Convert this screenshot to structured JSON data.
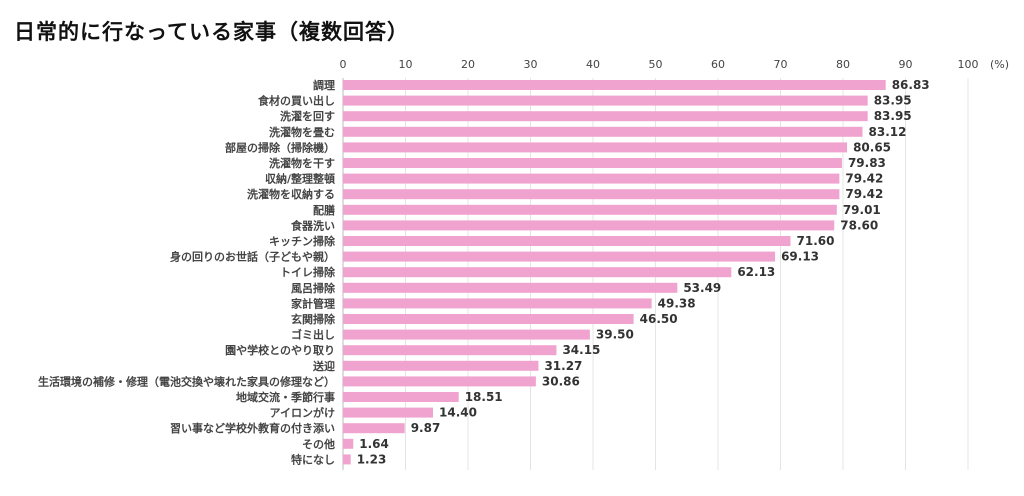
{
  "chart_data": {
    "type": "bar",
    "orientation": "horizontal",
    "title": "日常的に行なっている家事（複数回答）",
    "unit_label": "(%)",
    "xlim": [
      0,
      100
    ],
    "xticks": [
      0,
      10,
      20,
      30,
      40,
      50,
      60,
      70,
      80,
      90,
      100
    ],
    "grid": true,
    "bar_color": "#f0a3cf",
    "categories": [
      "調理",
      "食材の買い出し",
      "洗濯を回す",
      "洗濯物を畳む",
      "部屋の掃除（掃除機）",
      "洗濯物を干す",
      "収納/整理整頓",
      "洗濯物を収納する",
      "配膳",
      "食器洗い",
      "キッチン掃除",
      "身の回りのお世話（子どもや親）",
      "トイレ掃除",
      "風呂掃除",
      "家計管理",
      "玄関掃除",
      "ゴミ出し",
      "園や学校とのやり取り",
      "送迎",
      "生活環境の補修・修理（電池交換や壊れた家具の修理など）",
      "地域交流・季節行事",
      "アイロンがけ",
      "習い事など学校外教育の付き添い",
      "その他",
      "特になし"
    ],
    "values": [
      86.83,
      83.95,
      83.95,
      83.12,
      80.65,
      79.83,
      79.42,
      79.42,
      79.01,
      78.6,
      71.6,
      69.13,
      62.13,
      53.49,
      49.38,
      46.5,
      39.5,
      34.15,
      31.27,
      30.86,
      18.51,
      14.4,
      9.87,
      1.64,
      1.23
    ],
    "value_labels": [
      "86.83",
      "83.95",
      "83.95",
      "83.12",
      "80.65",
      "79.83",
      "79.42",
      "79.42",
      "79.01",
      "78.60",
      "71.60",
      "69.13",
      "62.13",
      "53.49",
      "49.38",
      "46.50",
      "39.50",
      "34.15",
      "31.27",
      "30.86",
      "18.51",
      "14.40",
      "9.87",
      "1.64",
      "1.23"
    ]
  }
}
